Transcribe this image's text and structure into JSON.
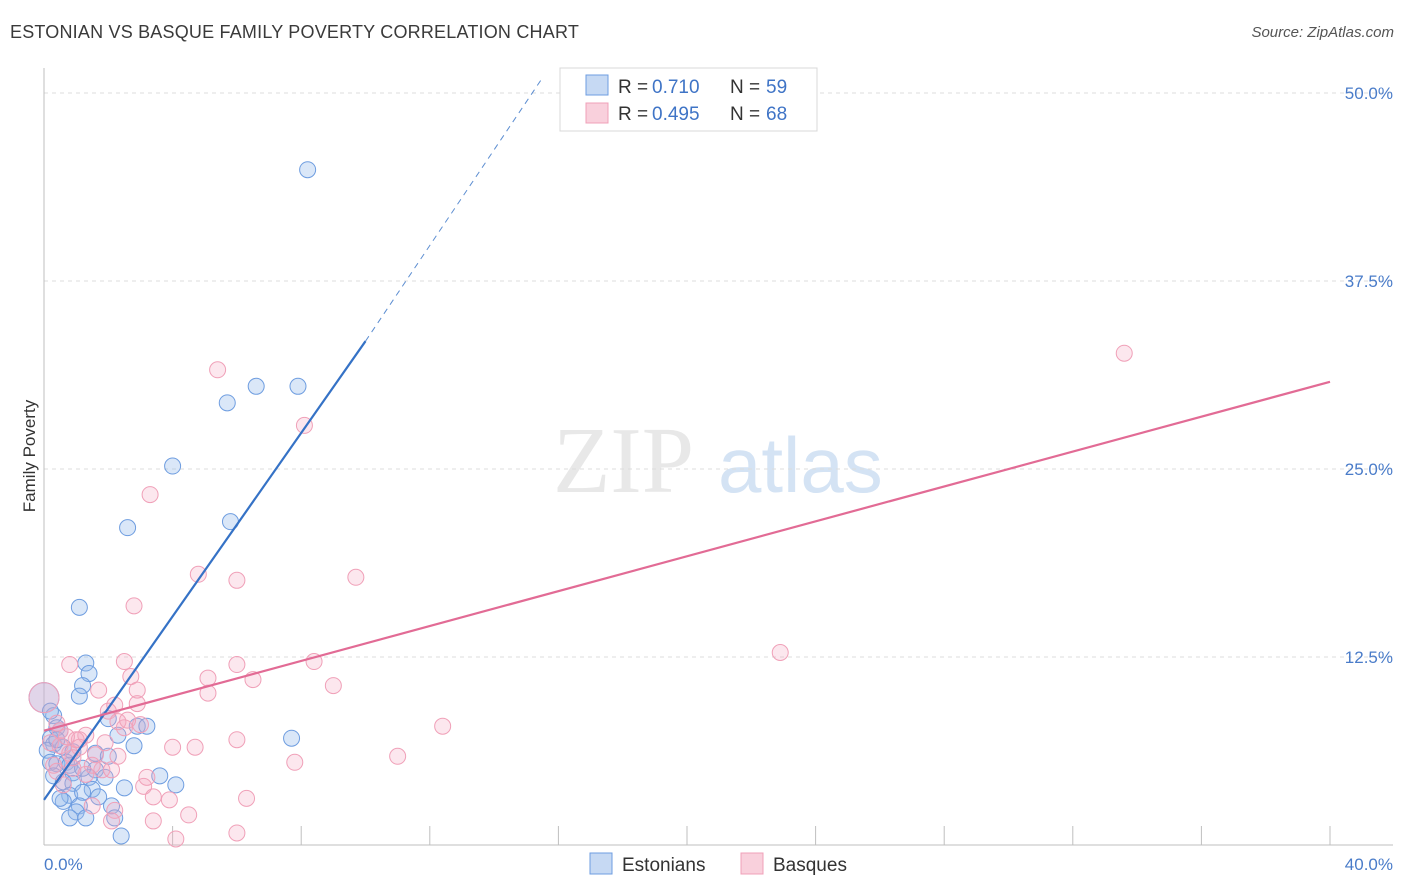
{
  "title": "ESTONIAN VS BASQUE FAMILY POVERTY CORRELATION CHART",
  "source": "Source: ZipAtlas.com",
  "watermark": {
    "zip": "ZIP",
    "atlas": "atlas"
  },
  "legend": {
    "rows": [
      {
        "r_label": "R =",
        "r_value": "0.710",
        "n_label": "N =",
        "n_value": "59"
      },
      {
        "r_label": "R =",
        "r_value": "0.495",
        "n_label": "N =",
        "n_value": "68"
      }
    ]
  },
  "chart_data": {
    "type": "scatter",
    "title": "ESTONIAN VS BASQUE FAMILY POVERTY CORRELATION CHART",
    "xlabel": "",
    "ylabel": "Family Poverty",
    "xlim": [
      0,
      40
    ],
    "ylim": [
      0,
      51
    ],
    "x_tick_labels": [
      "0.0%",
      "40.0%"
    ],
    "y_ticks": [
      12.5,
      25.0,
      37.5,
      50.0
    ],
    "y_tick_labels": [
      "12.5%",
      "25.0%",
      "37.5%",
      "50.0%"
    ],
    "colors": {
      "estonians": "#6e9de0",
      "basques": "#f0a0b8",
      "estonians_line": "#3572c6",
      "basques_line": "#e26b95"
    },
    "series": [
      {
        "name": "Estonians",
        "R": 0.71,
        "N": 59,
        "trend": {
          "x0": 0.0,
          "y0": 3.0,
          "x1": 10.0,
          "y1": 33.5,
          "dash_to_x": 15.5,
          "dash_to_y": 51.0
        },
        "points": [
          [
            8.2,
            44.9
          ],
          [
            6.6,
            30.5
          ],
          [
            7.9,
            30.5
          ],
          [
            5.7,
            29.4
          ],
          [
            4.0,
            25.2
          ],
          [
            5.8,
            21.5
          ],
          [
            2.6,
            21.1
          ],
          [
            1.1,
            15.8
          ],
          [
            1.3,
            12.1
          ],
          [
            1.4,
            11.4
          ],
          [
            1.2,
            10.6
          ],
          [
            1.1,
            9.9
          ],
          [
            0.0,
            9.8
          ],
          [
            0.3,
            8.6
          ],
          [
            2.0,
            8.4
          ],
          [
            2.9,
            7.9
          ],
          [
            0.4,
            7.8
          ],
          [
            0.5,
            7.6
          ],
          [
            3.2,
            7.9
          ],
          [
            0.2,
            7.1
          ],
          [
            2.3,
            7.3
          ],
          [
            0.3,
            6.7
          ],
          [
            0.6,
            6.5
          ],
          [
            2.8,
            6.6
          ],
          [
            0.1,
            6.3
          ],
          [
            0.9,
            6.2
          ],
          [
            1.6,
            6.1
          ],
          [
            2.0,
            5.9
          ],
          [
            0.2,
            5.5
          ],
          [
            0.4,
            5.4
          ],
          [
            0.7,
            5.5
          ],
          [
            0.8,
            5.3
          ],
          [
            1.6,
            5.0
          ],
          [
            0.9,
            4.8
          ],
          [
            3.6,
            4.6
          ],
          [
            0.3,
            4.6
          ],
          [
            1.4,
            4.5
          ],
          [
            1.9,
            4.5
          ],
          [
            0.6,
            4.2
          ],
          [
            0.9,
            4.1
          ],
          [
            1.5,
            3.7
          ],
          [
            4.1,
            4.0
          ],
          [
            2.5,
            3.8
          ],
          [
            0.8,
            3.3
          ],
          [
            1.2,
            3.5
          ],
          [
            0.6,
            2.9
          ],
          [
            1.1,
            2.6
          ],
          [
            2.1,
            2.6
          ],
          [
            1.0,
            2.2
          ],
          [
            2.2,
            1.8
          ],
          [
            0.8,
            1.8
          ],
          [
            1.3,
            1.8
          ],
          [
            7.7,
            7.1
          ],
          [
            2.4,
            0.6
          ],
          [
            0.5,
            3.1
          ],
          [
            1.7,
            3.2
          ],
          [
            0.2,
            8.9
          ],
          [
            0.4,
            7.0
          ],
          [
            1.2,
            5.1
          ]
        ]
      },
      {
        "name": "Basques",
        "R": 0.495,
        "N": 68,
        "trend": {
          "x0": 0.0,
          "y0": 7.6,
          "x1": 40.0,
          "y1": 30.8
        },
        "points": [
          [
            33.6,
            32.7
          ],
          [
            5.4,
            31.6
          ],
          [
            8.1,
            27.9
          ],
          [
            3.3,
            23.3
          ],
          [
            4.8,
            18.0
          ],
          [
            6.0,
            17.6
          ],
          [
            9.7,
            17.8
          ],
          [
            2.8,
            15.9
          ],
          [
            22.9,
            12.8
          ],
          [
            0.8,
            12.0
          ],
          [
            2.5,
            12.2
          ],
          [
            6.0,
            12.0
          ],
          [
            8.4,
            12.2
          ],
          [
            2.7,
            11.2
          ],
          [
            5.1,
            11.1
          ],
          [
            6.5,
            11.0
          ],
          [
            9.0,
            10.6
          ],
          [
            1.7,
            10.3
          ],
          [
            2.9,
            10.3
          ],
          [
            5.1,
            10.1
          ],
          [
            0.0,
            9.8
          ],
          [
            2.2,
            9.3
          ],
          [
            2.9,
            9.4
          ],
          [
            2.0,
            8.9
          ],
          [
            2.5,
            7.8
          ],
          [
            3.0,
            8.0
          ],
          [
            2.3,
            8.2
          ],
          [
            12.4,
            7.9
          ],
          [
            0.5,
            7.6
          ],
          [
            1.3,
            7.3
          ],
          [
            1.1,
            7.0
          ],
          [
            1.9,
            6.8
          ],
          [
            6.0,
            7.0
          ],
          [
            0.2,
            6.8
          ],
          [
            0.5,
            6.6
          ],
          [
            4.0,
            6.5
          ],
          [
            4.7,
            6.5
          ],
          [
            0.8,
            6.1
          ],
          [
            1.6,
            6.0
          ],
          [
            2.3,
            5.9
          ],
          [
            11.0,
            5.9
          ],
          [
            7.8,
            5.5
          ],
          [
            0.3,
            5.3
          ],
          [
            0.9,
            5.1
          ],
          [
            1.8,
            5.0
          ],
          [
            2.1,
            5.0
          ],
          [
            3.1,
            3.9
          ],
          [
            0.4,
            4.9
          ],
          [
            1.3,
            4.7
          ],
          [
            3.2,
            4.5
          ],
          [
            3.4,
            3.2
          ],
          [
            6.3,
            3.1
          ],
          [
            3.9,
            3.0
          ],
          [
            1.5,
            2.6
          ],
          [
            2.2,
            2.3
          ],
          [
            4.5,
            2.0
          ],
          [
            2.1,
            1.6
          ],
          [
            3.4,
            1.6
          ],
          [
            6.0,
            0.8
          ],
          [
            4.1,
            0.4
          ],
          [
            0.6,
            4.0
          ],
          [
            1.1,
            6.5
          ],
          [
            0.7,
            7.2
          ],
          [
            1.5,
            5.3
          ],
          [
            0.9,
            5.8
          ],
          [
            2.6,
            8.3
          ],
          [
            0.4,
            8.1
          ],
          [
            1.0,
            7.0
          ]
        ]
      }
    ]
  },
  "bottom_legend": {
    "items": [
      {
        "label": "Estonians"
      },
      {
        "label": "Basques"
      }
    ]
  }
}
